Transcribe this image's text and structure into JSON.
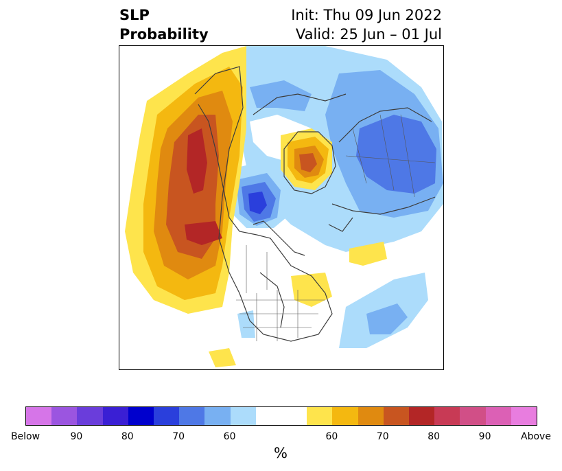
{
  "title": {
    "left_line1": "SLP",
    "left_line2": "Probability",
    "right_line1": "Init: Thu 09 Jun 2022",
    "right_line2": "Valid: 25 Jun – 01 Jul"
  },
  "colorbar": {
    "colors": [
      "#d675e8",
      "#9b55e0",
      "#6a3ddb",
      "#3a1fd4",
      "#0000cd",
      "#2a3fdc",
      "#4e78e6",
      "#78b0f2",
      "#acdcfb",
      "#ffffff",
      "#ffffff",
      "#fee44c",
      "#f4b810",
      "#e08a10",
      "#c85520",
      "#b32626",
      "#c83a55",
      "#d14f87",
      "#dc60b5",
      "#e87ddf"
    ],
    "ticks": [
      {
        "label": "Below"
      },
      {
        "label": "90"
      },
      {
        "label": "80"
      },
      {
        "label": "70"
      },
      {
        "label": "60"
      },
      {
        "label": "60"
      },
      {
        "label": "70"
      },
      {
        "label": "80"
      },
      {
        "label": "90"
      },
      {
        "label": "Above"
      }
    ],
    "unit": "%"
  }
}
